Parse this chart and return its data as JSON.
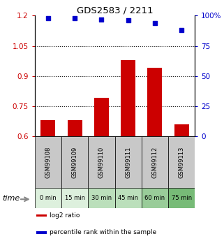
{
  "title": "GDS2583 / 2211",
  "samples": [
    "GSM99108",
    "GSM99109",
    "GSM99110",
    "GSM99111",
    "GSM99112",
    "GSM99113"
  ],
  "time_labels": [
    "0 min",
    "15 min",
    "30 min",
    "45 min",
    "60 min",
    "75 min"
  ],
  "log2_values": [
    0.68,
    0.68,
    0.79,
    0.98,
    0.94,
    0.66
  ],
  "percentile_values": [
    98,
    98,
    97,
    96,
    94,
    88
  ],
  "ylim_left": [
    0.6,
    1.2
  ],
  "ylim_right": [
    0,
    100
  ],
  "yticks_left": [
    0.6,
    0.75,
    0.9,
    1.05,
    1.2
  ],
  "yticks_right": [
    0,
    25,
    50,
    75,
    100
  ],
  "bar_color": "#cc0000",
  "dot_color": "#0000cc",
  "bar_width": 0.55,
  "time_bg_colors": [
    "#ddf0dd",
    "#ddf0dd",
    "#bbdfbb",
    "#bbdfbb",
    "#99cc99",
    "#77bb77"
  ],
  "sample_bg_color": "#c8c8c8",
  "legend_items": [
    {
      "color": "#cc0000",
      "label": "log2 ratio"
    },
    {
      "color": "#0000cc",
      "label": "percentile rank within the sample"
    }
  ]
}
